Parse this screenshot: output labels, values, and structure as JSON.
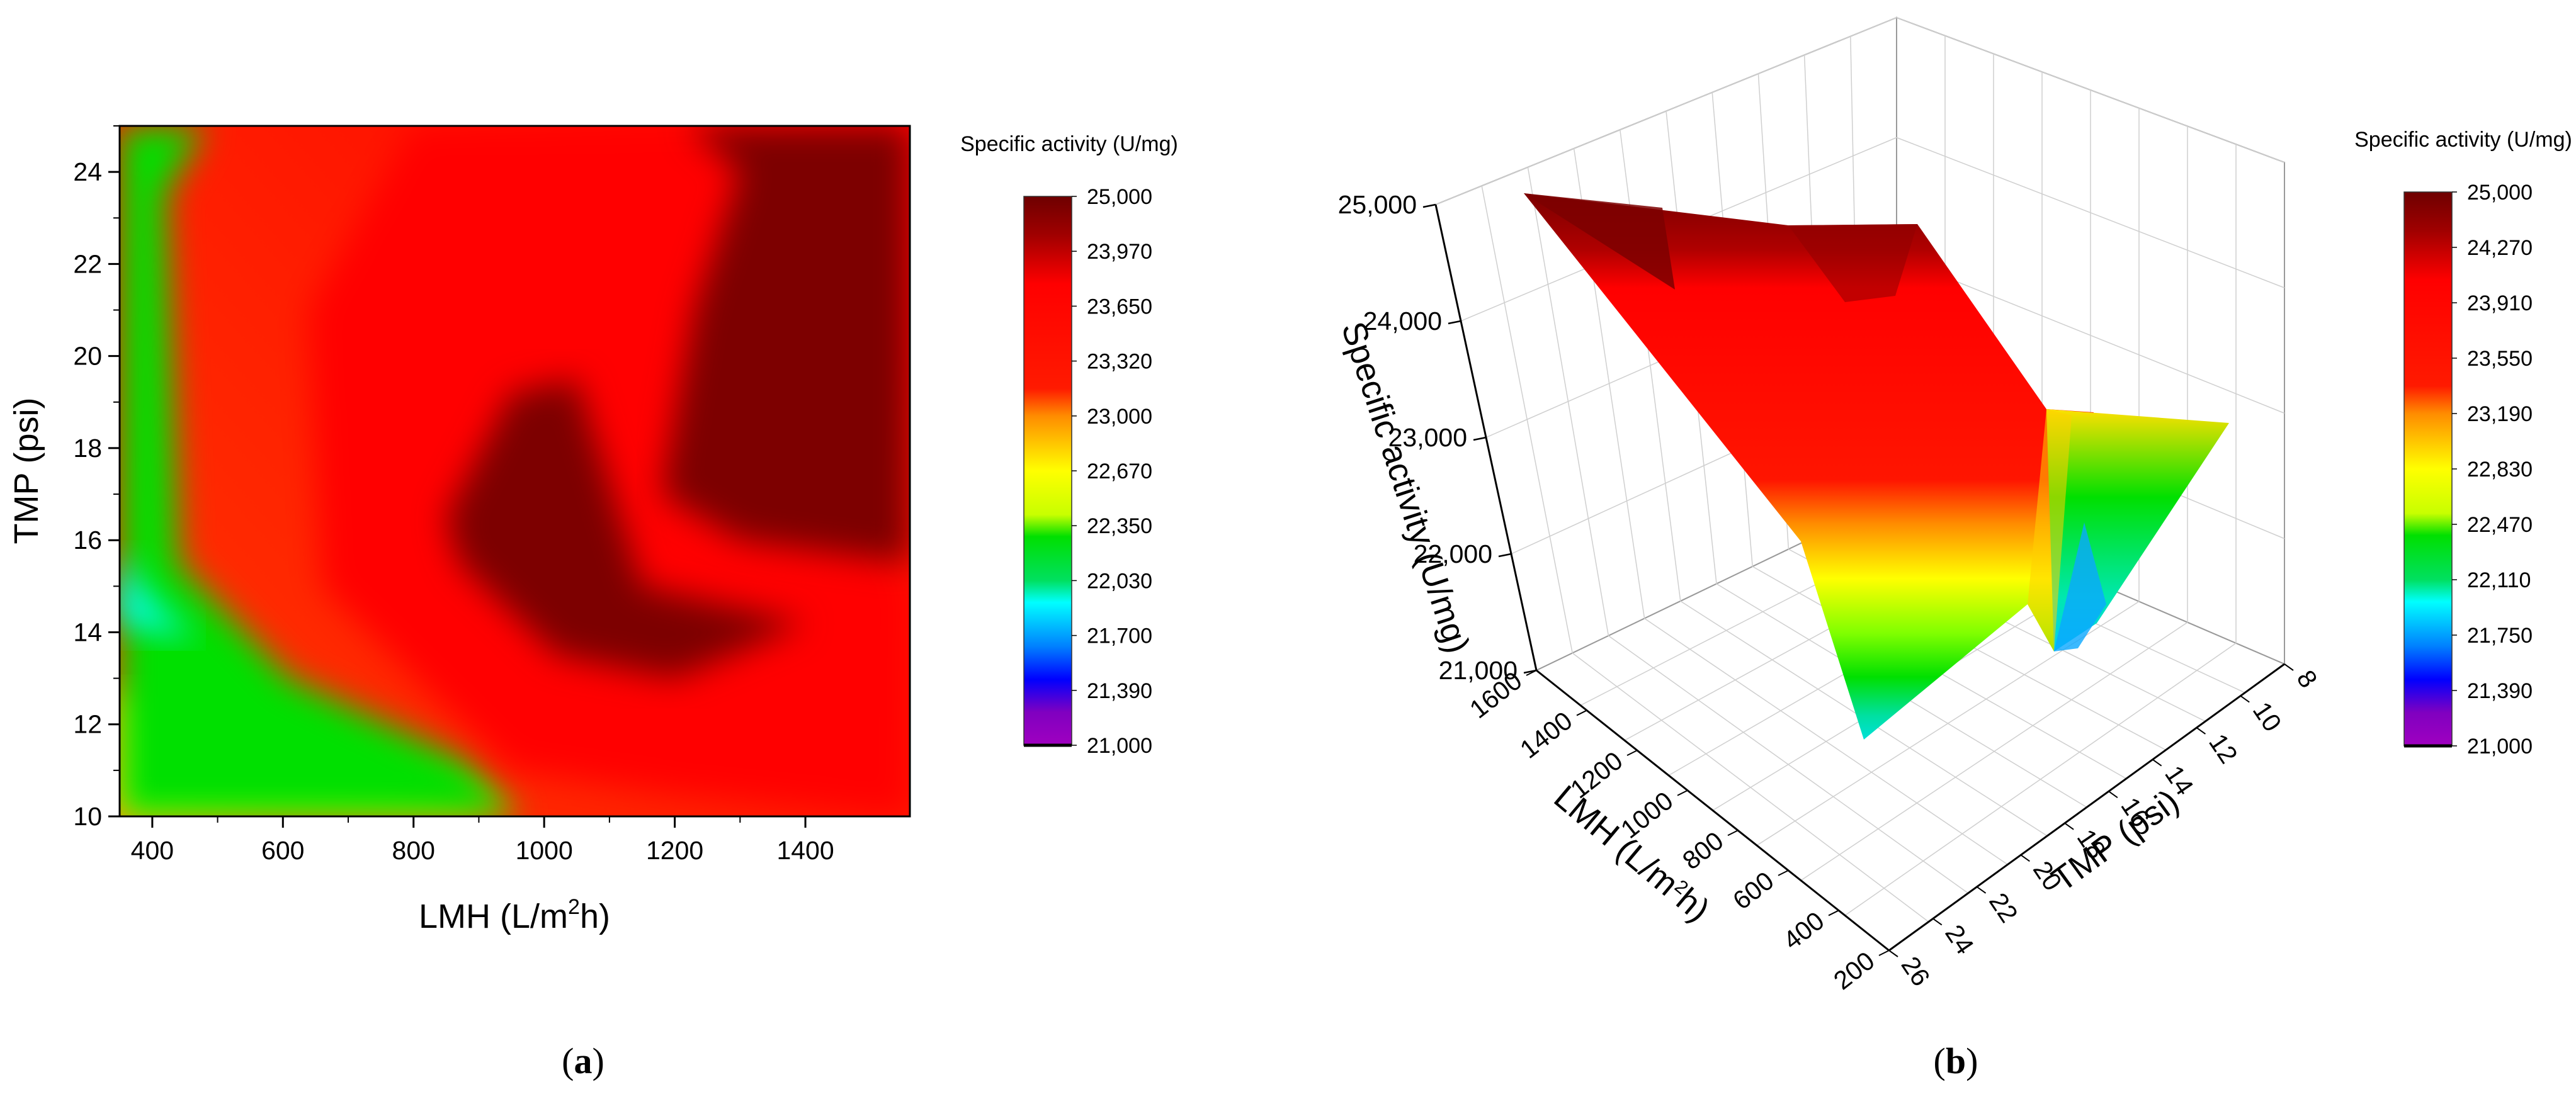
{
  "panels": {
    "a": {
      "caption_open": "(",
      "caption_letter": "a",
      "caption_close": ")"
    },
    "b": {
      "caption_open": "(",
      "caption_letter": "b",
      "caption_close": ")"
    }
  },
  "colors": {
    "dark_red": "#7d0000",
    "red": "#ff0000",
    "orange": "#ff8c00",
    "yellow": "#ffff00",
    "green": "#00e000",
    "cyan": "#00ffff",
    "blue": "#0000ff",
    "violet": "#8000c0"
  },
  "chart_data": [
    {
      "type": "heatmap",
      "title": "",
      "xlabel_prefix": "LMH (L/m",
      "xlabel_sup": "2",
      "xlabel_suffix": "h)",
      "ylabel": "TMP (psi)",
      "xlim": [
        350,
        1560
      ],
      "ylim": [
        10,
        25
      ],
      "x_ticks": [
        "400",
        "600",
        "800",
        "1000",
        "1200",
        "1400"
      ],
      "y_ticks": [
        "10",
        "12",
        "14",
        "16",
        "18",
        "20",
        "22",
        "24"
      ],
      "x_tick_values": [
        400,
        600,
        800,
        1000,
        1200,
        1400
      ],
      "y_tick_values": [
        10,
        12,
        14,
        16,
        18,
        20,
        22,
        24
      ],
      "regions": [
        {
          "level": "yellow",
          "points": [
            [
              350,
              12.8
            ],
            [
              650,
              11.3
            ],
            [
              880,
              10.6
            ],
            [
              950,
              10
            ],
            [
              350,
              10
            ]
          ]
        },
        {
          "level": "green",
          "points": [
            [
              350,
              13.8
            ],
            [
              350,
              25
            ],
            [
              480,
              25
            ],
            [
              420,
              23.5
            ],
            [
              440,
              15.5
            ],
            [
              610,
              13
            ],
            [
              880,
              11.2
            ],
            [
              960,
              10
            ],
            [
              350,
              10
            ]
          ]
        },
        {
          "level": "cyan",
          "points": [
            [
              350,
              15.8
            ],
            [
              390,
              14.8
            ],
            [
              470,
              13.8
            ],
            [
              360,
              14.2
            ],
            [
              350,
              14
            ]
          ]
        },
        {
          "level": "red",
          "points": [
            [
              600,
              25
            ],
            [
              800,
              25
            ],
            [
              640,
              21
            ],
            [
              660,
              15
            ],
            [
              950,
              11
            ],
            [
              1200,
              10.5
            ],
            [
              1560,
              10
            ],
            [
              1560,
              15
            ],
            [
              1480,
              17
            ],
            [
              1560,
              20
            ],
            [
              1560,
              25
            ]
          ]
        },
        {
          "level": "dark_red",
          "points": [
            [
              1220,
              25
            ],
            [
              1560,
              25
            ],
            [
              1560,
              15.5
            ],
            [
              1300,
              16
            ],
            [
              1180,
              17
            ],
            [
              1230,
              21
            ],
            [
              1300,
              24
            ]
          ]
        },
        {
          "level": "dark_red",
          "points": [
            [
              850,
              16.5
            ],
            [
              950,
              19.2
            ],
            [
              1050,
              19.5
            ],
            [
              1150,
              15
            ],
            [
              1400,
              14.2
            ],
            [
              1200,
              13
            ],
            [
              1020,
              13.5
            ],
            [
              870,
              15.5
            ]
          ]
        }
      ],
      "colorbar": {
        "title": "Specific activity (U/mg)",
        "range": [
          21000,
          25000
        ],
        "ticks": [
          "25,000",
          "23,970",
          "23,650",
          "23,320",
          "23,000",
          "22,670",
          "22,350",
          "22,030",
          "21,700",
          "21,390",
          "21,000"
        ]
      }
    },
    {
      "type": "surface3d",
      "title": "",
      "xlabel_prefix": "LMH (L/m",
      "xlabel_sup": "2",
      "xlabel_suffix": "h)",
      "ylabel": "TMP (psi)",
      "zlabel": "Specific activity (U/mg)",
      "x_ticks": [
        "200",
        "400",
        "600",
        "800",
        "1000",
        "1200",
        "1400",
        "1600"
      ],
      "y_ticks": [
        "26",
        "24",
        "22",
        "20",
        "18",
        "16",
        "14",
        "12",
        "10",
        "8"
      ],
      "z_ticks": [
        "21,000",
        "22,000",
        "23,000",
        "24,000",
        "25,000"
      ],
      "z_tick_values": [
        21000,
        22000,
        23000,
        24000,
        25000
      ],
      "grid": true,
      "colorbar": {
        "title": "Specific activity (U/mg)",
        "range": [
          21000,
          25000
        ],
        "ticks": [
          "25,000",
          "24,270",
          "23,910",
          "23,550",
          "23,190",
          "22,830",
          "22,470",
          "22,110",
          "21,750",
          "21,390",
          "21,000"
        ]
      }
    }
  ]
}
